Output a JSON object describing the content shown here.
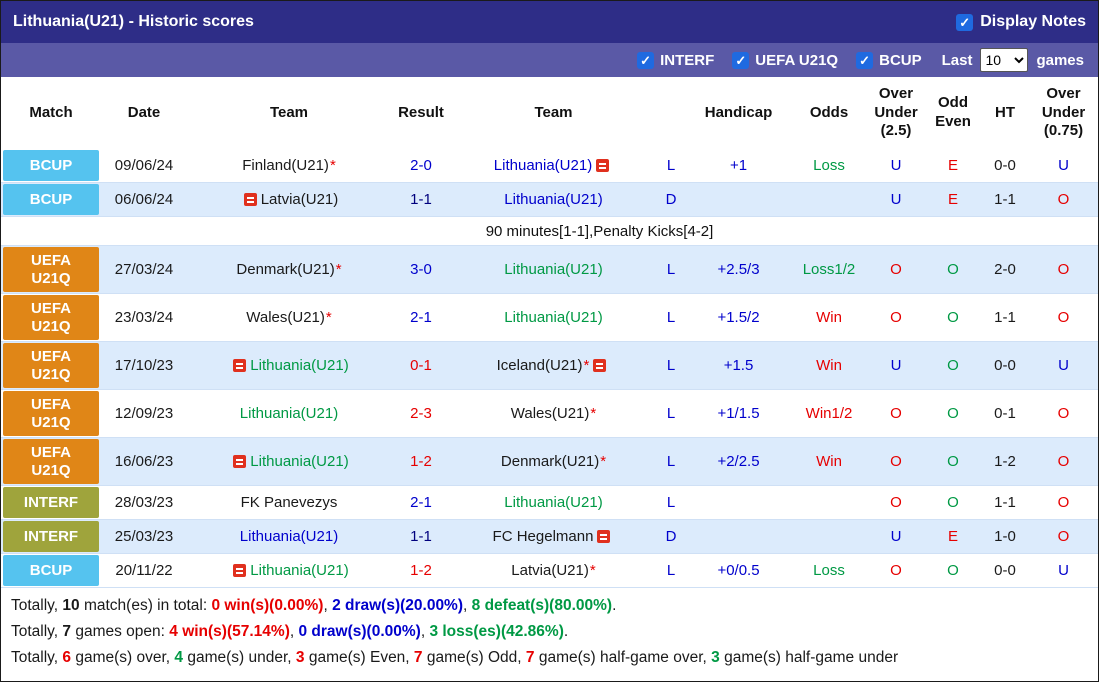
{
  "palette": {
    "blue": "#0000cc",
    "navy": "#00007e",
    "red": "#e60000",
    "green": "#009944",
    "black": "#1a1a1a",
    "bcup": "#55c3ef",
    "uefa": "#e08617",
    "interf": "#9fa43c",
    "title_bar": "#2e2d87",
    "filter_bar": "#5a59a6",
    "checkbox_blue": "#1f6ae0",
    "row_alt": "#dcebfc"
  },
  "title_bar": {
    "title": "Lithuania(U21) - Historic scores",
    "display_notes_label": "Display Notes",
    "display_notes_checked": true
  },
  "filter_bar": {
    "checkboxes": [
      {
        "label": "INTERF",
        "checked": true
      },
      {
        "label": "UEFA U21Q",
        "checked": true
      },
      {
        "label": "BCUP",
        "checked": true
      }
    ],
    "last_label": "Last",
    "last_value": "10",
    "games_label": "games"
  },
  "table": {
    "headers": [
      "Match",
      "Date",
      "Team",
      "Result",
      "Team",
      "",
      "Handicap",
      "Odds",
      "Over\nUnder\n(2.5)",
      "Odd\nEven",
      "HT",
      "Over\nUnder\n(0.75)"
    ],
    "rows": [
      {
        "comp": "BCUP",
        "comp_c": "bcup",
        "alt": false,
        "date": "09/06/24",
        "home": {
          "name": "Finland(U21)",
          "c": "black",
          "star": true
        },
        "result": {
          "t": "2-0",
          "c": "blue"
        },
        "away": {
          "name": "Lithuania(U21)",
          "c": "blue",
          "post_icon": true
        },
        "letter": "L",
        "handicap": "+1",
        "odds": {
          "t": "Loss",
          "c": "green"
        },
        "ou25": {
          "t": "U",
          "c": "blue"
        },
        "oe": {
          "t": "E",
          "c": "red"
        },
        "ht": "0-0",
        "ou075": {
          "t": "U",
          "c": "blue"
        },
        "note": ""
      },
      {
        "comp": "BCUP",
        "comp_c": "bcup",
        "alt": true,
        "date": "06/06/24",
        "home": {
          "name": "Latvia(U21)",
          "c": "black",
          "pre_icon": true
        },
        "result": {
          "t": "1-1",
          "c": "navy"
        },
        "away": {
          "name": "Lithuania(U21)",
          "c": "blue"
        },
        "letter": "D",
        "handicap": "",
        "odds": {
          "t": "",
          "c": ""
        },
        "ou25": {
          "t": "U",
          "c": "blue"
        },
        "oe": {
          "t": "E",
          "c": "red"
        },
        "ht": "1-1",
        "ou075": {
          "t": "O",
          "c": "red"
        },
        "note": "90 minutes[1-1],Penalty Kicks[4-2]"
      },
      {
        "comp": "UEFA\nU21Q",
        "comp_c": "uefa",
        "alt": true,
        "date": "27/03/24",
        "home": {
          "name": "Denmark(U21)",
          "c": "black",
          "star": true
        },
        "result": {
          "t": "3-0",
          "c": "blue"
        },
        "away": {
          "name": "Lithuania(U21)",
          "c": "green"
        },
        "letter": "L",
        "handicap": "+2.5/3",
        "odds": {
          "t": "Loss1/2",
          "c": "green"
        },
        "ou25": {
          "t": "O",
          "c": "red"
        },
        "oe": {
          "t": "O",
          "c": "green"
        },
        "ht": "2-0",
        "ou075": {
          "t": "O",
          "c": "red"
        },
        "note": ""
      },
      {
        "comp": "UEFA\nU21Q",
        "comp_c": "uefa",
        "alt": false,
        "date": "23/03/24",
        "home": {
          "name": "Wales(U21)",
          "c": "black",
          "star": true
        },
        "result": {
          "t": "2-1",
          "c": "blue"
        },
        "away": {
          "name": "Lithuania(U21)",
          "c": "green"
        },
        "letter": "L",
        "handicap": "+1.5/2",
        "odds": {
          "t": "Win",
          "c": "red"
        },
        "ou25": {
          "t": "O",
          "c": "red"
        },
        "oe": {
          "t": "O",
          "c": "green"
        },
        "ht": "1-1",
        "ou075": {
          "t": "O",
          "c": "red"
        },
        "note": ""
      },
      {
        "comp": "UEFA\nU21Q",
        "comp_c": "uefa",
        "alt": true,
        "date": "17/10/23",
        "home": {
          "name": "Lithuania(U21)",
          "c": "green",
          "pre_icon": true
        },
        "result": {
          "t": "0-1",
          "c": "red"
        },
        "away": {
          "name": "Iceland(U21)",
          "c": "black",
          "star": true,
          "post_icon": true
        },
        "letter": "L",
        "handicap": "+1.5",
        "odds": {
          "t": "Win",
          "c": "red"
        },
        "ou25": {
          "t": "U",
          "c": "blue"
        },
        "oe": {
          "t": "O",
          "c": "green"
        },
        "ht": "0-0",
        "ou075": {
          "t": "U",
          "c": "blue"
        },
        "note": ""
      },
      {
        "comp": "UEFA\nU21Q",
        "comp_c": "uefa",
        "alt": false,
        "date": "12/09/23",
        "home": {
          "name": "Lithuania(U21)",
          "c": "green"
        },
        "result": {
          "t": "2-3",
          "c": "red"
        },
        "away": {
          "name": "Wales(U21)",
          "c": "black",
          "star": true
        },
        "letter": "L",
        "handicap": "+1/1.5",
        "odds": {
          "t": "Win1/2",
          "c": "red"
        },
        "ou25": {
          "t": "O",
          "c": "red"
        },
        "oe": {
          "t": "O",
          "c": "green"
        },
        "ht": "0-1",
        "ou075": {
          "t": "O",
          "c": "red"
        },
        "note": ""
      },
      {
        "comp": "UEFA\nU21Q",
        "comp_c": "uefa",
        "alt": true,
        "date": "16/06/23",
        "home": {
          "name": "Lithuania(U21)",
          "c": "green",
          "pre_icon": true
        },
        "result": {
          "t": "1-2",
          "c": "red"
        },
        "away": {
          "name": "Denmark(U21)",
          "c": "black",
          "star": true
        },
        "letter": "L",
        "handicap": "+2/2.5",
        "odds": {
          "t": "Win",
          "c": "red"
        },
        "ou25": {
          "t": "O",
          "c": "red"
        },
        "oe": {
          "t": "O",
          "c": "green"
        },
        "ht": "1-2",
        "ou075": {
          "t": "O",
          "c": "red"
        },
        "note": ""
      },
      {
        "comp": "INTERF",
        "comp_c": "interf",
        "alt": false,
        "date": "28/03/23",
        "home": {
          "name": "FK Panevezys",
          "c": "black"
        },
        "result": {
          "t": "2-1",
          "c": "blue"
        },
        "away": {
          "name": "Lithuania(U21)",
          "c": "green"
        },
        "letter": "L",
        "handicap": "",
        "odds": {
          "t": "",
          "c": ""
        },
        "ou25": {
          "t": "O",
          "c": "red"
        },
        "oe": {
          "t": "O",
          "c": "green"
        },
        "ht": "1-1",
        "ou075": {
          "t": "O",
          "c": "red"
        },
        "note": ""
      },
      {
        "comp": "INTERF",
        "comp_c": "interf",
        "alt": true,
        "date": "25/03/23",
        "home": {
          "name": "Lithuania(U21)",
          "c": "blue"
        },
        "result": {
          "t": "1-1",
          "c": "navy"
        },
        "away": {
          "name": "FC Hegelmann",
          "c": "black",
          "post_icon": true
        },
        "letter": "D",
        "handicap": "",
        "odds": {
          "t": "",
          "c": ""
        },
        "ou25": {
          "t": "U",
          "c": "blue"
        },
        "oe": {
          "t": "E",
          "c": "red"
        },
        "ht": "1-0",
        "ou075": {
          "t": "O",
          "c": "red"
        },
        "note": ""
      },
      {
        "comp": "BCUP",
        "comp_c": "bcup",
        "alt": false,
        "date": "20/11/22",
        "home": {
          "name": "Lithuania(U21)",
          "c": "green",
          "pre_icon": true
        },
        "result": {
          "t": "1-2",
          "c": "red"
        },
        "away": {
          "name": "Latvia(U21)",
          "c": "black",
          "star": true
        },
        "letter": "L",
        "handicap": "+0/0.5",
        "odds": {
          "t": "Loss",
          "c": "green"
        },
        "ou25": {
          "t": "O",
          "c": "red"
        },
        "oe": {
          "t": "O",
          "c": "green"
        },
        "ht": "0-0",
        "ou075": {
          "t": "U",
          "c": "blue"
        },
        "note": ""
      }
    ]
  },
  "footer": {
    "lines": [
      [
        {
          "t": "Totally, "
        },
        {
          "t": "10",
          "b": 1
        },
        {
          "t": " match(es) in total: "
        },
        {
          "t": "0 win(s)(0.00%)",
          "c": "red",
          "b": 1
        },
        {
          "t": ", "
        },
        {
          "t": "2 draw(s)(20.00%)",
          "c": "blue",
          "b": 1
        },
        {
          "t": ", "
        },
        {
          "t": "8 defeat(s)(80.00%)",
          "c": "green",
          "b": 1
        },
        {
          "t": "."
        }
      ],
      [
        {
          "t": "Totally, "
        },
        {
          "t": "7",
          "b": 1
        },
        {
          "t": " games open: "
        },
        {
          "t": "4 win(s)(57.14%)",
          "c": "red",
          "b": 1
        },
        {
          "t": ", "
        },
        {
          "t": "0 draw(s)(0.00%)",
          "c": "blue",
          "b": 1
        },
        {
          "t": ", "
        },
        {
          "t": "3 loss(es)(42.86%)",
          "c": "green",
          "b": 1
        },
        {
          "t": "."
        }
      ],
      [
        {
          "t": "Totally, "
        },
        {
          "t": "6",
          "c": "red",
          "b": 1
        },
        {
          "t": " game(s) over, "
        },
        {
          "t": "4",
          "c": "green",
          "b": 1
        },
        {
          "t": " game(s) under, "
        },
        {
          "t": "3",
          "c": "red",
          "b": 1
        },
        {
          "t": " game(s) Even, "
        },
        {
          "t": "7",
          "c": "red",
          "b": 1
        },
        {
          "t": " game(s) Odd, "
        },
        {
          "t": "7",
          "c": "red",
          "b": 1
        },
        {
          "t": " game(s) half-game over, "
        },
        {
          "t": "3",
          "c": "green",
          "b": 1
        },
        {
          "t": " game(s) half-game under"
        }
      ]
    ]
  }
}
